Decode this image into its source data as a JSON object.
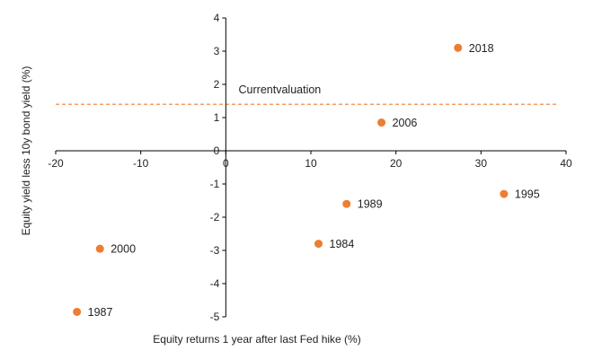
{
  "chart_data": {
    "type": "scatter",
    "title": "",
    "xlabel": "Equity returns 1 year after last Fed hike (%)",
    "ylabel": "Equity yield less 10y bond yield (%)",
    "xlim": [
      -20,
      40
    ],
    "ylim": [
      -5,
      4
    ],
    "x_ticks": [
      "-20",
      "-10",
      "0",
      "10",
      "20",
      "30",
      "40"
    ],
    "y_ticks": [
      "4",
      "3",
      "2",
      "1",
      "0",
      "-1",
      "-2",
      "-3",
      "-4",
      "-5"
    ],
    "grid": false,
    "legend": "none",
    "colors": {
      "point": "#ED7D31",
      "reference_line": "#ED7D31"
    },
    "points": [
      {
        "label": "2018",
        "x": 27.3,
        "y": 3.1
      },
      {
        "label": "2006",
        "x": 18.3,
        "y": 0.85
      },
      {
        "label": "1995",
        "x": 32.7,
        "y": -1.3
      },
      {
        "label": "1989",
        "x": 14.2,
        "y": -1.6
      },
      {
        "label": "1984",
        "x": 10.9,
        "y": -2.8
      },
      {
        "label": "2000",
        "x": -14.8,
        "y": -2.95
      },
      {
        "label": "1987",
        "x": -17.5,
        "y": -4.85
      }
    ],
    "reference_line": {
      "label": "Currentvaluation",
      "y": 1.4,
      "style": "dashed"
    }
  }
}
